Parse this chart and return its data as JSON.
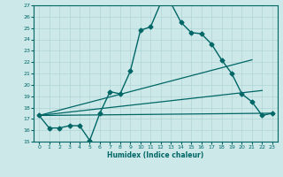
{
  "xlabel": "Humidex (Indice chaleur)",
  "ylabel": "",
  "background_color": "#cce8e8",
  "grid_color": "#b0d4d4",
  "line_color": "#006666",
  "xlim": [
    -0.5,
    23.5
  ],
  "ylim": [
    15,
    27
  ],
  "xticks": [
    0,
    1,
    2,
    3,
    4,
    5,
    6,
    7,
    8,
    9,
    10,
    11,
    12,
    13,
    14,
    15,
    16,
    17,
    18,
    19,
    20,
    21,
    22,
    23
  ],
  "yticks": [
    15,
    16,
    17,
    18,
    19,
    20,
    21,
    22,
    23,
    24,
    25,
    26,
    27
  ],
  "lines": [
    {
      "x": [
        0,
        1,
        2,
        3,
        4,
        5,
        6,
        7,
        8,
        9,
        10,
        11,
        12,
        13,
        14,
        15,
        16,
        17,
        18,
        19,
        20,
        21,
        22,
        23
      ],
      "y": [
        17.3,
        16.2,
        16.2,
        16.4,
        16.4,
        15.1,
        17.5,
        19.4,
        19.2,
        21.2,
        24.8,
        25.1,
        27.2,
        27.2,
        25.5,
        24.6,
        24.5,
        23.6,
        22.2,
        21.0,
        19.2,
        18.5,
        17.3,
        17.5
      ],
      "marker": "D",
      "markersize": 2.5,
      "linewidth": 1.0
    },
    {
      "x": [
        0,
        23
      ],
      "y": [
        17.3,
        17.5
      ],
      "marker": null,
      "markersize": 0,
      "linewidth": 0.9
    },
    {
      "x": [
        0,
        21
      ],
      "y": [
        17.3,
        22.2
      ],
      "marker": null,
      "markersize": 0,
      "linewidth": 0.9
    },
    {
      "x": [
        0,
        22
      ],
      "y": [
        17.3,
        19.5
      ],
      "marker": null,
      "markersize": 0,
      "linewidth": 0.9
    }
  ]
}
